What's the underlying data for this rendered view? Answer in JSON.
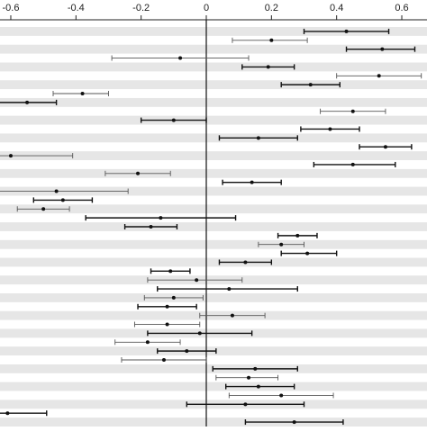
{
  "chart_data": {
    "type": "forest",
    "title": "",
    "xlabel": "",
    "ylabel": "",
    "xlim": [
      -0.62,
      0.64
    ],
    "x_ticks": [
      -0.6,
      -0.4,
      -0.2,
      0,
      0.2,
      0.4,
      0.6
    ],
    "x_tick_labels": [
      "-0.6",
      "-0.4",
      "-0.2",
      "0",
      "0.2",
      "0.4",
      "0.6"
    ],
    "x_axis_position": "top",
    "reference_line": 0,
    "row_stripes": true,
    "point_color": "#111111",
    "ci_color_dark": "#111111",
    "ci_color_light": "#555555",
    "stripe_color": "#e6e6e6",
    "rows": [
      {
        "estimate": 0.43,
        "lower": 0.3,
        "upper": 0.56,
        "style": "dark"
      },
      {
        "estimate": 0.2,
        "lower": 0.08,
        "upper": 0.31,
        "style": "light"
      },
      {
        "estimate": 0.54,
        "lower": 0.43,
        "upper": 0.64,
        "style": "dark"
      },
      {
        "estimate": -0.08,
        "lower": -0.29,
        "upper": 0.13,
        "style": "light"
      },
      {
        "estimate": 0.19,
        "lower": 0.11,
        "upper": 0.27,
        "style": "dark"
      },
      {
        "estimate": 0.53,
        "lower": 0.4,
        "upper": 0.66,
        "style": "light"
      },
      {
        "estimate": 0.32,
        "lower": 0.23,
        "upper": 0.41,
        "style": "dark"
      },
      {
        "estimate": -0.38,
        "lower": -0.47,
        "upper": -0.3,
        "style": "light"
      },
      {
        "estimate": -0.55,
        "lower": -0.64,
        "upper": -0.46,
        "style": "dark"
      },
      {
        "estimate": 0.45,
        "lower": 0.35,
        "upper": 0.55,
        "style": "light"
      },
      {
        "estimate": -0.1,
        "lower": -0.2,
        "upper": 0.0,
        "style": "dark"
      },
      {
        "estimate": 0.38,
        "lower": 0.29,
        "upper": 0.47,
        "style": "dark"
      },
      {
        "estimate": 0.16,
        "lower": 0.04,
        "upper": 0.28,
        "style": "dark"
      },
      {
        "estimate": 0.55,
        "lower": 0.47,
        "upper": 0.63,
        "style": "dark"
      },
      {
        "estimate": -0.6,
        "lower": -0.82,
        "upper": -0.41,
        "style": "light"
      },
      {
        "estimate": 0.45,
        "lower": 0.33,
        "upper": 0.58,
        "style": "dark"
      },
      {
        "estimate": -0.21,
        "lower": -0.31,
        "upper": -0.11,
        "style": "light"
      },
      {
        "estimate": 0.14,
        "lower": 0.05,
        "upper": 0.23,
        "style": "dark"
      },
      {
        "estimate": -0.46,
        "lower": -0.69,
        "upper": -0.24,
        "style": "light"
      },
      {
        "estimate": -0.44,
        "lower": -0.53,
        "upper": -0.35,
        "style": "dark"
      },
      {
        "estimate": -0.5,
        "lower": -0.58,
        "upper": -0.42,
        "style": "light"
      },
      {
        "estimate": -0.14,
        "lower": -0.37,
        "upper": 0.09,
        "style": "dark"
      },
      {
        "estimate": -0.17,
        "lower": -0.25,
        "upper": -0.09,
        "style": "dark"
      },
      {
        "estimate": 0.28,
        "lower": 0.22,
        "upper": 0.34,
        "style": "dark"
      },
      {
        "estimate": 0.23,
        "lower": 0.16,
        "upper": 0.3,
        "style": "light"
      },
      {
        "estimate": 0.31,
        "lower": 0.23,
        "upper": 0.4,
        "style": "dark"
      },
      {
        "estimate": 0.12,
        "lower": 0.04,
        "upper": 0.2,
        "style": "dark"
      },
      {
        "estimate": -0.11,
        "lower": -0.17,
        "upper": -0.05,
        "style": "dark"
      },
      {
        "estimate": -0.03,
        "lower": -0.18,
        "upper": 0.11,
        "style": "light"
      },
      {
        "estimate": 0.07,
        "lower": -0.15,
        "upper": 0.28,
        "style": "dark"
      },
      {
        "estimate": -0.1,
        "lower": -0.19,
        "upper": -0.01,
        "style": "light"
      },
      {
        "estimate": -0.12,
        "lower": -0.21,
        "upper": -0.03,
        "style": "dark"
      },
      {
        "estimate": 0.08,
        "lower": -0.02,
        "upper": 0.18,
        "style": "light"
      },
      {
        "estimate": -0.12,
        "lower": -0.22,
        "upper": -0.02,
        "style": "light"
      },
      {
        "estimate": -0.02,
        "lower": -0.18,
        "upper": 0.14,
        "style": "dark"
      },
      {
        "estimate": -0.18,
        "lower": -0.28,
        "upper": -0.08,
        "style": "light"
      },
      {
        "estimate": -0.06,
        "lower": -0.15,
        "upper": 0.03,
        "style": "dark"
      },
      {
        "estimate": -0.13,
        "lower": -0.26,
        "upper": 0.0,
        "style": "light"
      },
      {
        "estimate": 0.15,
        "lower": 0.02,
        "upper": 0.28,
        "style": "dark"
      },
      {
        "estimate": 0.13,
        "lower": 0.03,
        "upper": 0.22,
        "style": "light"
      },
      {
        "estimate": 0.16,
        "lower": 0.06,
        "upper": 0.27,
        "style": "dark"
      },
      {
        "estimate": 0.23,
        "lower": 0.07,
        "upper": 0.39,
        "style": "light"
      },
      {
        "estimate": 0.12,
        "lower": -0.06,
        "upper": 0.3,
        "style": "dark"
      },
      {
        "estimate": -0.61,
        "lower": -0.73,
        "upper": -0.49,
        "style": "dark"
      },
      {
        "estimate": 0.27,
        "lower": 0.12,
        "upper": 0.42,
        "style": "dark"
      }
    ]
  }
}
